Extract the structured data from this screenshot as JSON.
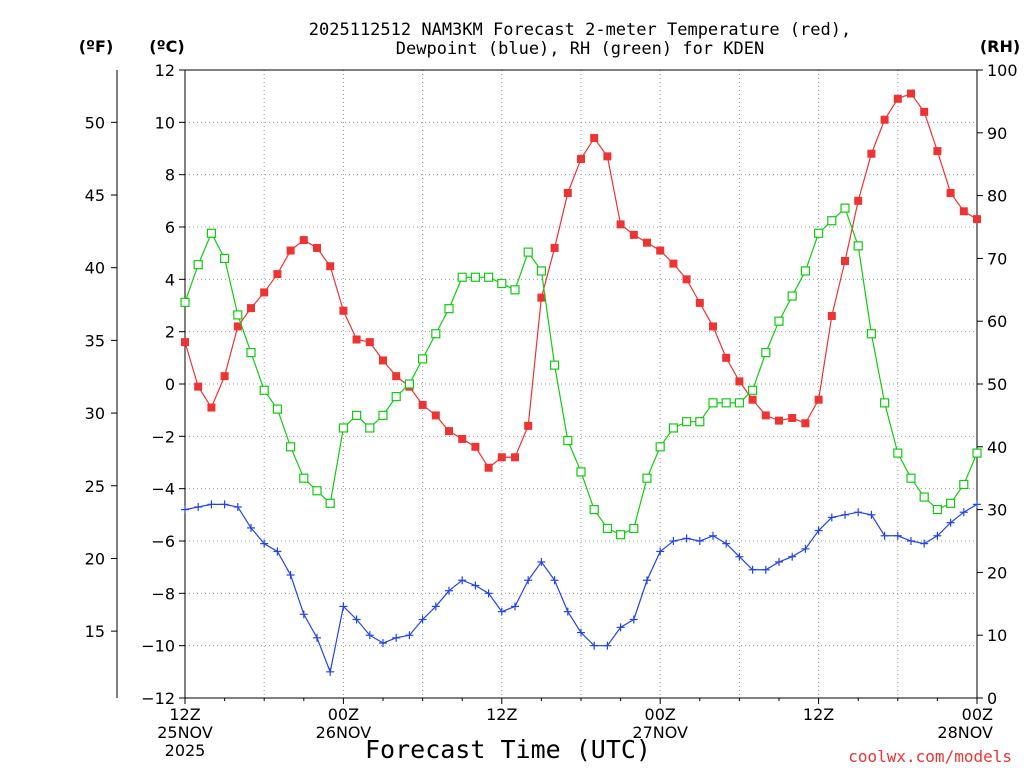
{
  "chart_data": {
    "type": "line",
    "title_line1": "2025112512 NAM3KM Forecast 2-meter Temperature (red),",
    "title_line2": "Dewpoint (blue), RH (green) for KDEN",
    "unit_f": "(ºF)",
    "unit_c": "(ºC)",
    "unit_rh": "(RH)",
    "xlabel": "Forecast Time (UTC)",
    "watermark": "coolwx.com/models",
    "x_range": [
      0,
      60
    ],
    "c_range": [
      -12,
      12
    ],
    "rh_range": [
      0,
      100
    ],
    "c_ticks": [
      "-12",
      "-10",
      "-8",
      "-6",
      "-4",
      "-2",
      "0",
      "2",
      "4",
      "6",
      "8",
      "10",
      "12"
    ],
    "f_ticks": [
      "15",
      "20",
      "25",
      "30",
      "35",
      "40",
      "45",
      "50"
    ],
    "rh_ticks": [
      "0",
      "10",
      "20",
      "30",
      "40",
      "50",
      "60",
      "70",
      "80",
      "90",
      "100"
    ],
    "x_ticks": [
      {
        "hour": 0,
        "lines": [
          "12Z",
          "25NOV",
          "2025"
        ]
      },
      {
        "hour": 12,
        "lines": [
          "00Z",
          "26NOV"
        ]
      },
      {
        "hour": 24,
        "lines": [
          "12Z"
        ]
      },
      {
        "hour": 36,
        "lines": [
          "00Z",
          "27NOV"
        ]
      },
      {
        "hour": 48,
        "lines": [
          "12Z"
        ]
      },
      {
        "hour": 60,
        "lines": [
          "00Z",
          "28NOV"
        ]
      }
    ],
    "series": [
      {
        "name": "Temperature",
        "unit": "C",
        "color": "#ee3333",
        "marker": "filled-square",
        "values": [
          1.6,
          -0.1,
          -0.9,
          0.3,
          2.2,
          2.9,
          3.5,
          4.2,
          5.1,
          5.5,
          5.2,
          4.5,
          2.8,
          1.7,
          1.6,
          0.9,
          0.3,
          -0.1,
          -0.8,
          -1.2,
          -1.8,
          -2.1,
          -2.4,
          -3.2,
          -2.8,
          -2.8,
          -1.6,
          3.3,
          5.2,
          7.3,
          8.6,
          9.4,
          8.7,
          6.1,
          5.7,
          5.4,
          5.1,
          4.6,
          4.0,
          3.1,
          2.2,
          1.0,
          0.1,
          -0.6,
          -1.2,
          -1.4,
          -1.3,
          -1.5,
          -0.6,
          2.6,
          4.7,
          7.0,
          8.8,
          10.1,
          10.9,
          11.1,
          10.4,
          8.9,
          7.3,
          6.6,
          6.3
        ]
      },
      {
        "name": "Dewpoint",
        "unit": "C",
        "color": "#2244ee",
        "marker": "plus",
        "values": [
          -4.8,
          -4.7,
          -4.6,
          -4.6,
          -4.7,
          -5.5,
          -6.1,
          -6.4,
          -7.3,
          -8.8,
          -9.7,
          -11.0,
          -8.5,
          -9.0,
          -9.6,
          -9.9,
          -9.7,
          -9.6,
          -9.0,
          -8.5,
          -7.9,
          -7.5,
          -7.7,
          -8.0,
          -8.7,
          -8.5,
          -7.5,
          -6.8,
          -7.5,
          -8.7,
          -9.5,
          -10.0,
          -10.0,
          -9.3,
          -9.0,
          -7.5,
          -6.4,
          -6.0,
          -5.9,
          -6.0,
          -5.8,
          -6.1,
          -6.6,
          -7.1,
          -7.1,
          -6.8,
          -6.6,
          -6.3,
          -5.6,
          -5.1,
          -5.0,
          -4.9,
          -5.0,
          -5.8,
          -5.8,
          -6.0,
          -6.1,
          -5.8,
          -5.3,
          -4.9,
          -4.6
        ]
      },
      {
        "name": "RH",
        "unit": "%",
        "color": "#11cc11",
        "marker": "open-square",
        "values": [
          63,
          69,
          74,
          70,
          61,
          55,
          49,
          46,
          40,
          35,
          33,
          31,
          43,
          45,
          43,
          45,
          48,
          50,
          54,
          58,
          62,
          67,
          67,
          67,
          66,
          65,
          71,
          68,
          53,
          41,
          36,
          30,
          27,
          26,
          27,
          35,
          40,
          43,
          44,
          44,
          47,
          47,
          47,
          49,
          55,
          60,
          64,
          68,
          74,
          76,
          78,
          72,
          58,
          47,
          39,
          35,
          32,
          30,
          31,
          34,
          39
        ]
      }
    ]
  }
}
